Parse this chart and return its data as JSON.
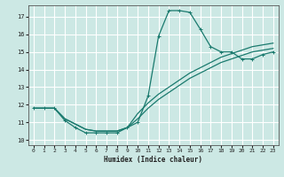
{
  "xlabel": "Humidex (Indice chaleur)",
  "bg_color": "#cce8e4",
  "grid_color": "#ffffff",
  "line_color": "#1a7a6e",
  "xlim": [
    -0.5,
    23.5
  ],
  "ylim": [
    9.7,
    17.65
  ],
  "xticks": [
    0,
    1,
    2,
    3,
    4,
    5,
    6,
    7,
    8,
    9,
    10,
    11,
    12,
    13,
    14,
    15,
    16,
    17,
    18,
    19,
    20,
    21,
    22,
    23
  ],
  "yticks": [
    10,
    11,
    12,
    13,
    14,
    15,
    16,
    17
  ],
  "line1_x": [
    0,
    1,
    2,
    3,
    4,
    5,
    6,
    7,
    8,
    9,
    10,
    11,
    12,
    13,
    14,
    15,
    16,
    17,
    18,
    19,
    20,
    21,
    22,
    23
  ],
  "line1_y": [
    11.8,
    11.8,
    11.8,
    11.1,
    10.7,
    10.4,
    10.4,
    10.4,
    10.4,
    10.7,
    11.0,
    12.5,
    15.9,
    17.35,
    17.35,
    17.25,
    16.3,
    15.3,
    15.0,
    15.0,
    14.6,
    14.6,
    14.85,
    15.0
  ],
  "line2_x": [
    0,
    1,
    2,
    3,
    4,
    5,
    6,
    7,
    8,
    9,
    10,
    11,
    12,
    13,
    14,
    15,
    16,
    17,
    18,
    19,
    20,
    21,
    22,
    23
  ],
  "line2_y": [
    11.8,
    11.8,
    11.8,
    11.2,
    10.9,
    10.6,
    10.5,
    10.5,
    10.5,
    10.7,
    11.2,
    11.8,
    12.3,
    12.7,
    13.1,
    13.5,
    13.8,
    14.1,
    14.4,
    14.6,
    14.8,
    15.0,
    15.1,
    15.2
  ],
  "line3_x": [
    0,
    1,
    2,
    3,
    4,
    5,
    6,
    7,
    8,
    9,
    10,
    11,
    12,
    13,
    14,
    15,
    16,
    17,
    18,
    19,
    20,
    21,
    22,
    23
  ],
  "line3_y": [
    11.8,
    11.8,
    11.8,
    11.2,
    10.9,
    10.6,
    10.5,
    10.5,
    10.5,
    10.7,
    11.5,
    12.1,
    12.6,
    13.0,
    13.4,
    13.8,
    14.1,
    14.4,
    14.7,
    14.9,
    15.1,
    15.3,
    15.4,
    15.5
  ]
}
